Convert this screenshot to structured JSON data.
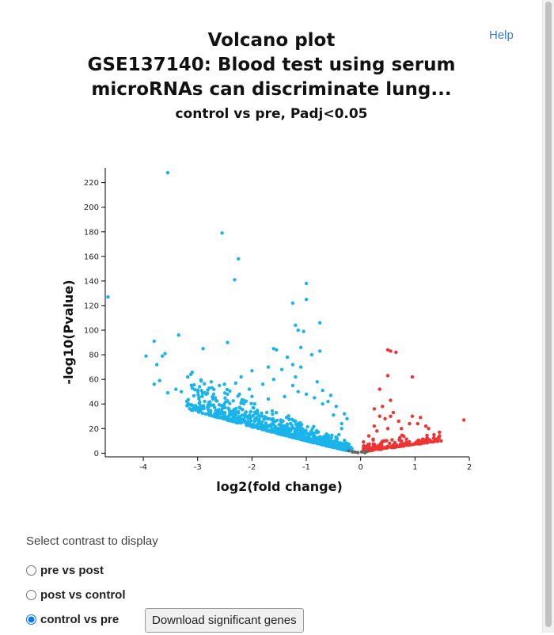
{
  "help_link": "Help",
  "title_lines": [
    "Volcano plot",
    "GSE137140: Blood test using serum",
    "microRNAs can discriminate lung..."
  ],
  "subtitle": "control vs pre, Padj<0.05",
  "controls": {
    "label": "Select contrast to display",
    "options": [
      {
        "label": "pre vs post",
        "checked": false
      },
      {
        "label": "post vs control",
        "checked": false
      },
      {
        "label": "control vs pre",
        "checked": true
      }
    ],
    "download_label": "Download significant genes"
  },
  "colors": {
    "down": "#1ab4ea",
    "up": "#ee3333",
    "ns": "#666666"
  },
  "chart_data": {
    "type": "scatter",
    "xlabel": "log2(fold change)",
    "ylabel": "-log10(Pvalue)",
    "xlim": [
      -4.7,
      2.0
    ],
    "ylim": [
      -3,
      232
    ],
    "xticks": [
      -4,
      -3,
      -2,
      -1,
      0,
      1,
      2
    ],
    "yticks": [
      0,
      20,
      40,
      60,
      80,
      100,
      120,
      140,
      160,
      180,
      200,
      220
    ],
    "series": [
      {
        "group": "down",
        "points": [
          [
            -3.55,
            228
          ],
          [
            -4.65,
            127
          ],
          [
            -2.55,
            179
          ],
          [
            -2.25,
            158
          ],
          [
            -2.32,
            141
          ],
          [
            -1.0,
            138
          ],
          [
            -1.0,
            125
          ],
          [
            -1.25,
            122
          ],
          [
            -1.2,
            104
          ],
          [
            -0.75,
            106
          ],
          [
            -1.15,
            100
          ],
          [
            -1.05,
            99
          ],
          [
            -3.8,
            91
          ],
          [
            -3.35,
            96
          ],
          [
            -3.6,
            81
          ],
          [
            -3.95,
            79
          ],
          [
            -3.65,
            79
          ],
          [
            -3.75,
            72
          ],
          [
            -2.9,
            85
          ],
          [
            -2.45,
            90
          ],
          [
            -1.6,
            85
          ],
          [
            -1.55,
            84
          ],
          [
            -1.1,
            86
          ],
          [
            -0.75,
            83
          ],
          [
            -0.9,
            80
          ],
          [
            -1.35,
            78
          ],
          [
            -1.25,
            72
          ],
          [
            -1.1,
            70
          ],
          [
            -1.7,
            70
          ],
          [
            -1.45,
            68
          ],
          [
            -2.0,
            67
          ],
          [
            -2.3,
            57
          ],
          [
            -2.2,
            62
          ],
          [
            -3.7,
            59
          ],
          [
            -3.4,
            52
          ],
          [
            -3.3,
            50
          ],
          [
            -3.55,
            49
          ],
          [
            -3.8,
            56
          ],
          [
            -3.1,
            53
          ],
          [
            -2.75,
            58
          ],
          [
            -2.6,
            55
          ],
          [
            -1.2,
            62
          ],
          [
            -0.8,
            58
          ],
          [
            -0.7,
            51
          ],
          [
            -1.25,
            55
          ],
          [
            -1.6,
            60
          ],
          [
            -1.8,
            56
          ],
          [
            -2.05,
            52
          ],
          [
            -0.55,
            47
          ],
          [
            -0.6,
            42
          ],
          [
            -0.45,
            38
          ],
          [
            -0.3,
            32
          ],
          [
            -0.25,
            28
          ],
          [
            -0.35,
            24
          ],
          [
            -0.5,
            31
          ],
          [
            -0.7,
            40
          ],
          [
            -0.85,
            45
          ],
          [
            -1.0,
            48
          ],
          [
            -1.15,
            50
          ],
          [
            -1.4,
            46
          ],
          [
            -1.7,
            44
          ],
          [
            -2.45,
            48
          ],
          [
            -2.15,
            43
          ],
          [
            -1.95,
            40
          ],
          [
            -0.35,
            20
          ],
          [
            -0.4,
            15
          ]
        ]
      },
      {
        "group": "up",
        "points": [
          [
            0.5,
            84
          ],
          [
            0.55,
            83
          ],
          [
            0.65,
            82
          ],
          [
            0.5,
            63
          ],
          [
            0.95,
            62
          ],
          [
            0.35,
            52
          ],
          [
            0.55,
            43
          ],
          [
            0.4,
            38
          ],
          [
            0.25,
            36
          ],
          [
            0.6,
            33
          ],
          [
            0.45,
            28
          ],
          [
            0.35,
            30
          ],
          [
            0.55,
            30
          ],
          [
            0.7,
            26
          ],
          [
            0.9,
            24
          ],
          [
            1.05,
            24
          ],
          [
            1.1,
            29
          ],
          [
            1.25,
            20
          ],
          [
            1.35,
            15
          ],
          [
            1.45,
            17
          ],
          [
            1.9,
            27
          ],
          [
            0.75,
            20
          ],
          [
            0.25,
            22
          ],
          [
            0.15,
            14
          ],
          [
            0.3,
            18
          ],
          [
            0.5,
            20
          ],
          [
            0.95,
            30
          ],
          [
            1.2,
            22
          ]
        ]
      },
      {
        "group": "ns",
        "points": [
          [
            -0.15,
            1
          ],
          [
            -0.05,
            0.5
          ],
          [
            0.02,
            1
          ],
          [
            0.08,
            0.3
          ],
          [
            -0.22,
            2
          ],
          [
            0.12,
            1.5
          ],
          [
            -0.1,
            0.8
          ]
        ]
      }
    ],
    "dense_band": {
      "down": [
        -3.2,
        -0.15
      ],
      "up": [
        0.05,
        1.5
      ]
    }
  }
}
